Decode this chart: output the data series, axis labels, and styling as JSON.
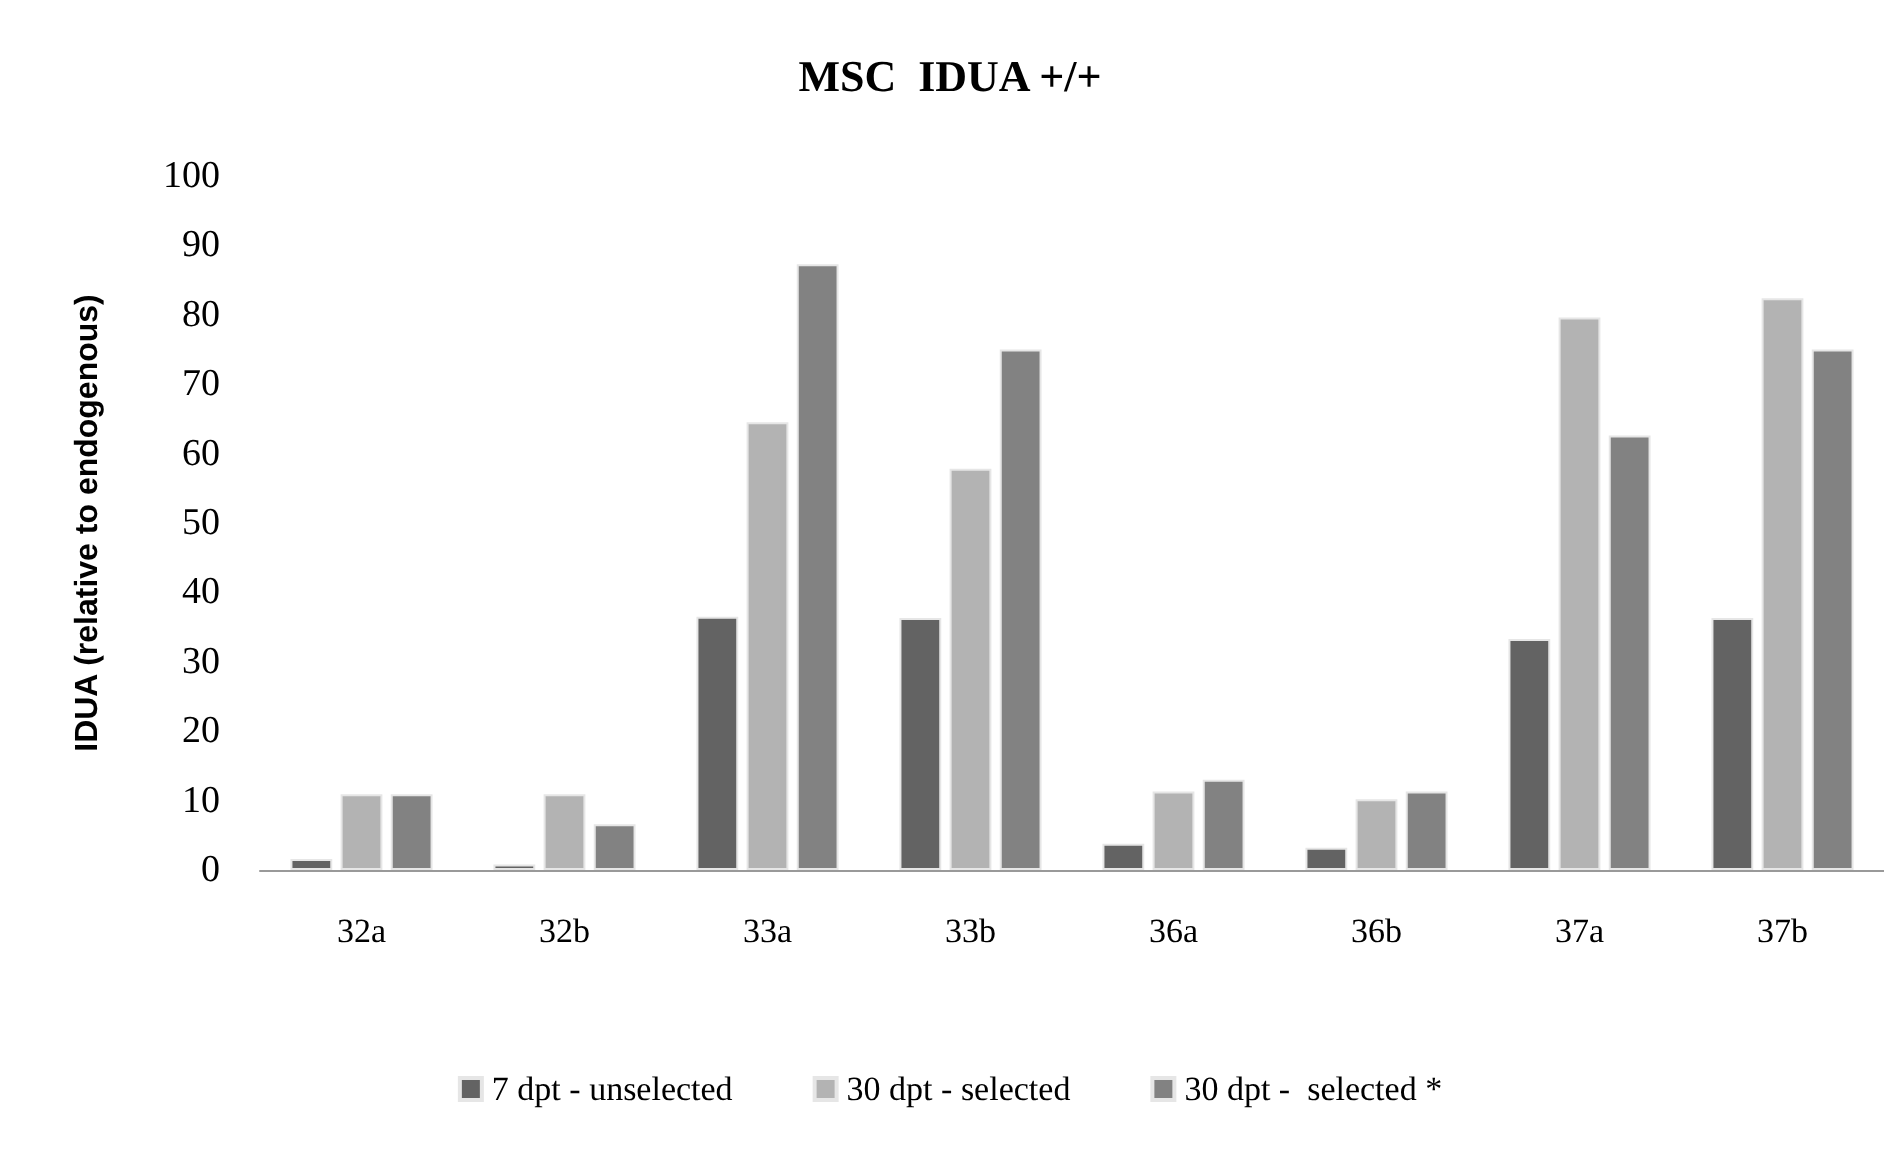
{
  "chart_data": {
    "type": "bar",
    "title": "MSC  IDUA +/+",
    "ylabel": "IDUA (relative to endogenous)",
    "categories": [
      "32a",
      "32b",
      "33a",
      "33b",
      "36a",
      "36b",
      "37a",
      "37b"
    ],
    "series": [
      {
        "name": "7 dpt - unselected",
        "color": "#636363",
        "values": [
          1.6,
          0.8,
          36.5,
          36.3,
          3.8,
          3.2,
          33.3,
          36.3
        ]
      },
      {
        "name": "30 dpt - selected",
        "color": "#b3b3b3",
        "values": [
          10.9,
          10.9,
          64.5,
          57.8,
          11.3,
          10.2,
          79.6,
          82.4
        ]
      },
      {
        "name": "30 dpt -  selected *",
        "color": "#828282",
        "values": [
          10.9,
          6.6,
          87.3,
          75,
          13,
          11.3,
          62.6,
          75
        ]
      }
    ],
    "ylim": [
      0,
      100
    ],
    "yticks": [
      0,
      10,
      20,
      30,
      40,
      50,
      60,
      70,
      80,
      90,
      100
    ],
    "grid": false,
    "legend": "bottom"
  }
}
